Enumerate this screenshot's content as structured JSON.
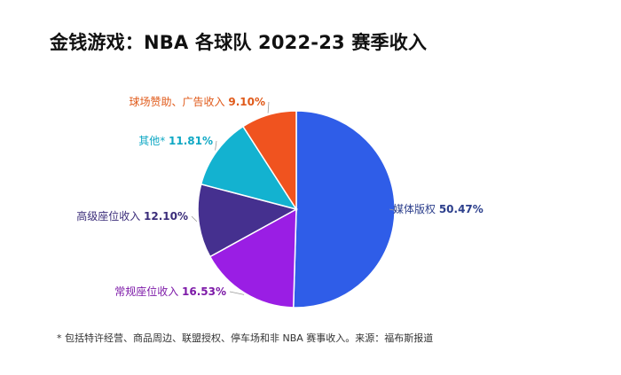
{
  "title": "金钱游戏：NBA 各球队 2022-23 赛季收入",
  "note": "* 包括特许经营、商品周边、联盟授权、停车场和非 NBA 赛事收入。来源：福布斯报道",
  "chart_data": {
    "type": "pie",
    "title": "金钱游戏：NBA 各球队 2022-23 赛季收入",
    "slices": [
      {
        "label": "媒体版权",
        "value": 50.47,
        "display": "50.47%",
        "color": "#2f5de8"
      },
      {
        "label": "常规座位收入",
        "value": 16.53,
        "display": "16.53%",
        "color": "#9a1ee4"
      },
      {
        "label": "高级座位收入",
        "value": 12.1,
        "display": "12.10%",
        "color": "#45308f"
      },
      {
        "label": "其他*",
        "value": 11.81,
        "display": "11.81%",
        "color": "#13b2d0"
      },
      {
        "label": "球场赞助、广告收入",
        "value": 9.1,
        "display": "9.10%",
        "color": "#f0531f"
      }
    ],
    "label_colors": [
      "#2c3f8c",
      "#7d1aa8",
      "#3b2d7a",
      "#0fa8c4",
      "#e05a1a"
    ],
    "legend": "none"
  }
}
